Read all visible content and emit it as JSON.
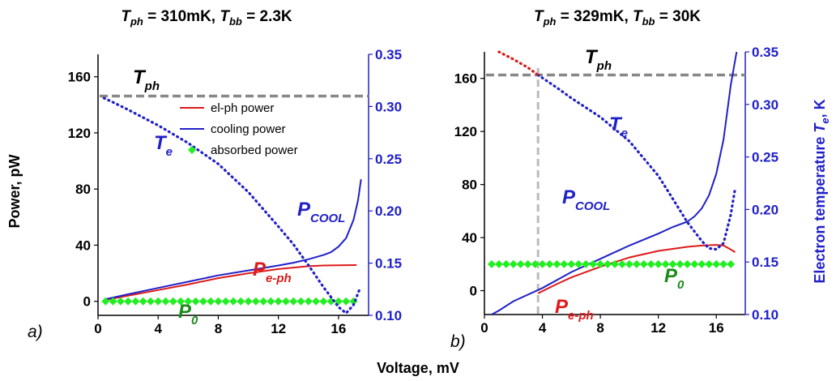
{
  "colors": {
    "elph": "#dd1a1a",
    "cool": "#2020c8",
    "absorbed": "#22ee22",
    "te": "#2020c8",
    "tph": "#888888",
    "p0_text": "#1a8a1a"
  },
  "x_label": "Voltage, mV",
  "y_label_left": "Power, pW",
  "y_label_right_main": "Electron temperature ",
  "y_label_right_sym": "T",
  "y_label_right_sub": "e",
  "y_label_right_unit": ", K",
  "chart_data": [
    {
      "panel": "a)",
      "type": "line",
      "title": {
        "t1": "T",
        "s1": "ph",
        "m1": " = 310mK, ",
        "t2": "T",
        "s2": "bb",
        "m2": " = 2.3K"
      },
      "xlim": [
        0,
        18
      ],
      "ylim_left": [
        -10,
        176
      ],
      "ylim_right": [
        0.1,
        0.35
      ],
      "x_ticks": [
        0,
        4,
        8,
        12,
        16
      ],
      "y_ticks_left": [
        0,
        40,
        80,
        120,
        160
      ],
      "y_ticks_right": [
        "0.10",
        "0.15",
        "0.20",
        "0.25",
        "0.30",
        "0.35"
      ],
      "legend": [
        "el-ph power",
        "cooling power",
        "absorbed power"
      ],
      "annotations": {
        "tph": {
          "main": "T",
          "sub": "ph"
        },
        "te": {
          "main": "T",
          "sub": "e"
        },
        "pcool": {
          "main": "P",
          "sub": "COOL"
        },
        "peph": {
          "main": "P",
          "sub": "e-ph"
        },
        "p0": {
          "main": "P",
          "sub": "0"
        }
      },
      "series": [
        {
          "name": "el-ph power",
          "axis": "left",
          "style": "solid",
          "points": [
            [
              0.5,
              1
            ],
            [
              2,
              4
            ],
            [
              4,
              8
            ],
            [
              6,
              12
            ],
            [
              8,
              16.5
            ],
            [
              10,
              20
            ],
            [
              12,
              23
            ],
            [
              14,
              25
            ],
            [
              15,
              25.5
            ],
            [
              16,
              25.7
            ],
            [
              17.2,
              25.8
            ]
          ]
        },
        {
          "name": "cooling power",
          "axis": "left",
          "style": "solid",
          "points": [
            [
              0.5,
              1.5
            ],
            [
              2,
              5
            ],
            [
              4,
              9.5
            ],
            [
              6,
              14
            ],
            [
              8,
              18.5
            ],
            [
              10,
              22
            ],
            [
              12,
              25.5
            ],
            [
              13,
              27.5
            ],
            [
              14,
              30
            ],
            [
              15,
              33
            ],
            [
              15.5,
              35
            ],
            [
              16,
              39
            ],
            [
              16.5,
              45
            ],
            [
              17,
              58
            ],
            [
              17.3,
              72
            ],
            [
              17.5,
              87
            ]
          ]
        },
        {
          "name": "absorbed power",
          "axis": "left",
          "style": "diamond",
          "x_range": [
            0.5,
            17.3
          ],
          "value": 0
        },
        {
          "name": "T_e",
          "axis": "right",
          "style": "dotted",
          "points": [
            [
              0.4,
              0.308
            ],
            [
              1,
              0.304
            ],
            [
              2,
              0.297
            ],
            [
              4,
              0.282
            ],
            [
              6,
              0.265
            ],
            [
              8,
              0.245
            ],
            [
              10,
              0.218
            ],
            [
              12,
              0.185
            ],
            [
              13,
              0.168
            ],
            [
              14,
              0.148
            ],
            [
              15,
              0.127
            ],
            [
              16,
              0.108
            ],
            [
              16.5,
              0.102
            ],
            [
              17,
              0.11
            ],
            [
              17.4,
              0.125
            ]
          ]
        },
        {
          "name": "T_ph",
          "axis": "right",
          "style": "dashed",
          "value": 0.31
        }
      ]
    },
    {
      "panel": "b)",
      "type": "line",
      "title": {
        "t1": "T",
        "s1": "ph",
        "m1": " = 329mK, ",
        "t2": "T",
        "s2": "bb",
        "m2": " = 30K"
      },
      "xlim": [
        0,
        18
      ],
      "ylim_left": [
        -18,
        180
      ],
      "ylim_right": [
        0.1,
        0.35
      ],
      "x_ticks": [
        0,
        4,
        8,
        12,
        16
      ],
      "y_ticks_left": [
        0,
        40,
        80,
        120,
        160
      ],
      "y_ticks_right": [
        "0.10",
        "0.15",
        "0.20",
        "0.25",
        "0.30",
        "0.35"
      ],
      "annotations": {
        "tph": {
          "main": "T",
          "sub": "ph"
        },
        "te": {
          "main": "T",
          "sub": "e"
        },
        "pcool": {
          "main": "P",
          "sub": "COOL"
        },
        "peph": {
          "main": "P",
          "sub": "e-ph"
        },
        "p0": {
          "main": "P",
          "sub": "0"
        }
      },
      "series": [
        {
          "name": "el-ph power",
          "axis": "left",
          "style": "solid",
          "points": [
            [
              3.7,
              -2
            ],
            [
              5,
              5
            ],
            [
              6,
              10
            ],
            [
              8,
              18
            ],
            [
              10,
              25
            ],
            [
              12,
              30
            ],
            [
              14,
              33
            ],
            [
              15,
              34
            ],
            [
              16,
              34.5
            ],
            [
              16.5,
              34
            ],
            [
              17,
              31
            ],
            [
              17.3,
              29
            ]
          ]
        },
        {
          "name": "cooling power",
          "axis": "left",
          "style": "solid",
          "points": [
            [
              0.5,
              -18
            ],
            [
              1,
              -15
            ],
            [
              2,
              -8
            ],
            [
              4,
              2
            ],
            [
              6,
              14
            ],
            [
              8,
              24
            ],
            [
              10,
              34
            ],
            [
              12,
              43
            ],
            [
              13,
              48
            ],
            [
              14,
              52
            ],
            [
              14.5,
              56
            ],
            [
              15,
              62
            ],
            [
              15.5,
              72
            ],
            [
              16,
              88
            ],
            [
              16.5,
              114
            ],
            [
              17,
              155
            ],
            [
              17.4,
              180
            ]
          ]
        },
        {
          "name": "absorbed power",
          "axis": "left",
          "style": "diamond",
          "x_range": [
            0.5,
            17.3
          ],
          "value": 20
        },
        {
          "name": "T_e (below T_ph)",
          "axis": "right",
          "style": "dotted",
          "points": [
            [
              3.7,
              0.328
            ],
            [
              5,
              0.316
            ],
            [
              6,
              0.306
            ],
            [
              8,
              0.288
            ],
            [
              10,
              0.265
            ],
            [
              12,
              0.232
            ],
            [
              13,
              0.21
            ],
            [
              14,
              0.188
            ],
            [
              15,
              0.17
            ],
            [
              15.5,
              0.163
            ],
            [
              16,
              0.162
            ],
            [
              16.5,
              0.168
            ],
            [
              17,
              0.195
            ],
            [
              17.3,
              0.22
            ]
          ]
        },
        {
          "name": "T_e (above T_ph)",
          "axis": "right",
          "style": "dotted-red",
          "points": [
            [
              1,
              0.35
            ],
            [
              2,
              0.343
            ],
            [
              3,
              0.335
            ],
            [
              3.7,
              0.328
            ]
          ]
        },
        {
          "name": "T_ph",
          "axis": "right",
          "style": "dashed",
          "value": 0.328
        },
        {
          "name": "V_marker",
          "axis": "left",
          "style": "vdashed",
          "x": 3.7
        }
      ]
    }
  ]
}
